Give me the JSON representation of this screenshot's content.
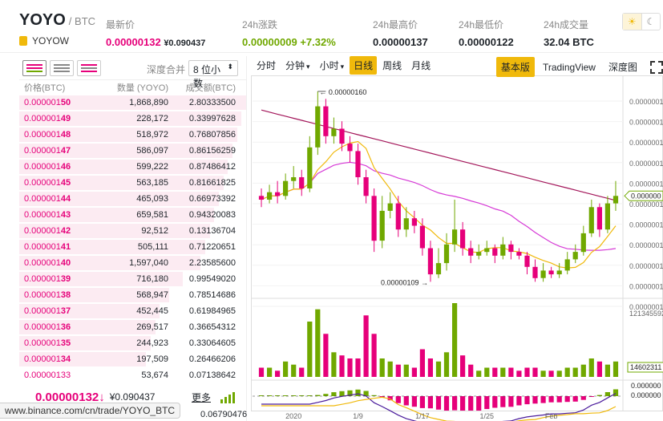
{
  "header": {
    "symbol": "YOYO",
    "quote": "/ BTC",
    "coin_name": "YOYOW",
    "stats": [
      {
        "label": "最新价",
        "value": "0.00000132",
        "extra": "¥0.090437",
        "color": "pink"
      },
      {
        "label": "24h涨跌",
        "value": "0.00000009",
        "extra": "+7.32%",
        "color": "green"
      },
      {
        "label": "24h最高价",
        "value": "0.00000137"
      },
      {
        "label": "24h最低价",
        "value": "0.00000122"
      },
      {
        "label": "24h成交量",
        "value": "32.04 BTC"
      }
    ],
    "theme_light_icon": "sun-icon",
    "theme_dark_icon": "moon-icon"
  },
  "orderbook": {
    "merge_label": "深度合并",
    "precision": "8 位小数",
    "columns": [
      "价格(BTC)",
      "数量 (YOYO)",
      "成交额(BTC)"
    ],
    "asks": [
      {
        "price_prefix": "0.000001",
        "price_suffix": "50",
        "amount": "1,868,890",
        "total": "2.80333500",
        "depth": 1.0
      },
      {
        "price_prefix": "0.000001",
        "price_suffix": "49",
        "amount": "228,172",
        "total": "0.33997628",
        "depth": 0.98
      },
      {
        "price_prefix": "0.000001",
        "price_suffix": "48",
        "amount": "518,972",
        "total": "0.76807856",
        "depth": 0.96
      },
      {
        "price_prefix": "0.000001",
        "price_suffix": "47",
        "amount": "586,097",
        "total": "0.86156259",
        "depth": 0.94
      },
      {
        "price_prefix": "0.000001",
        "price_suffix": "46",
        "amount": "599,222",
        "total": "0.87486412",
        "depth": 0.92
      },
      {
        "price_prefix": "0.000001",
        "price_suffix": "45",
        "amount": "563,185",
        "total": "0.81661825",
        "depth": 0.9
      },
      {
        "price_prefix": "0.000001",
        "price_suffix": "44",
        "amount": "465,093",
        "total": "0.66973392",
        "depth": 0.88
      },
      {
        "price_prefix": "0.000001",
        "price_suffix": "43",
        "amount": "659,581",
        "total": "0.94320083",
        "depth": 0.86
      },
      {
        "price_prefix": "0.000001",
        "price_suffix": "42",
        "amount": "92,512",
        "total": "0.13136704",
        "depth": 0.84
      },
      {
        "price_prefix": "0.000001",
        "price_suffix": "41",
        "amount": "505,111",
        "total": "0.71220651",
        "depth": 0.82
      },
      {
        "price_prefix": "0.000001",
        "price_suffix": "40",
        "amount": "1,597,040",
        "total": "2.23585600",
        "depth": 0.8
      },
      {
        "price_prefix": "0.000001",
        "price_suffix": "39",
        "amount": "716,180",
        "total": "0.99549020",
        "depth": 0.72
      },
      {
        "price_prefix": "0.000001",
        "price_suffix": "38",
        "amount": "568,947",
        "total": "0.78514686",
        "depth": 0.66
      },
      {
        "price_prefix": "0.000001",
        "price_suffix": "37",
        "amount": "452,445",
        "total": "0.61984965",
        "depth": 0.62
      },
      {
        "price_prefix": "0.000001",
        "price_suffix": "36",
        "amount": "269,517",
        "total": "0.36654312",
        "depth": 0.6
      },
      {
        "price_prefix": "0.000001",
        "price_suffix": "35",
        "amount": "244,923",
        "total": "0.33064605",
        "depth": 0.58
      },
      {
        "price_prefix": "0.000001",
        "price_suffix": "34",
        "amount": "197,509",
        "total": "0.26466206",
        "depth": 0.56
      },
      {
        "price_prefix": "0.00000133",
        "price_suffix": "",
        "amount": "53,674",
        "total": "0.07138642",
        "depth": 0.4
      }
    ],
    "last_price": "0.00000132",
    "last_arrow": "↓",
    "last_cny": "¥0.090437",
    "more_label": "更多",
    "bottom_value": "0.06790476"
  },
  "url_tooltip": "www.binance.com/cn/trade/YOYO_BTC",
  "chart_toolbar": {
    "left": [
      {
        "label": "分时",
        "active": false,
        "dropdown": false
      },
      {
        "label": "分钟",
        "active": false,
        "dropdown": true
      },
      {
        "label": "小时",
        "active": false,
        "dropdown": true
      },
      {
        "label": "日线",
        "active": true,
        "dropdown": false
      },
      {
        "label": "周线",
        "active": false,
        "dropdown": false
      },
      {
        "label": "月线",
        "active": false,
        "dropdown": false
      }
    ],
    "right": [
      {
        "label": "基本版",
        "active": true
      },
      {
        "label": "TradingView",
        "active": false
      },
      {
        "label": "深度图",
        "active": false
      }
    ]
  },
  "chart_data": {
    "type": "candlestick",
    "x_ticks": [
      "2020",
      "1/9",
      "1/17",
      "1/25",
      "Feb"
    ],
    "y_tick_labels": [
      "0.0000001",
      "0.0000001",
      "0.0000001",
      "0.0000001",
      "0.0000001",
      "0.0000001",
      "0.0000001",
      "0.0000001",
      "0.0000001",
      "0.0000001",
      "0.0000001"
    ],
    "high_annotation": "0.00000160",
    "low_annotation": "0.00000109",
    "current_price_label": "0.000000",
    "volume_axis_labels": [
      "121345592",
      "14602311"
    ],
    "macd_axis_labels": [
      "0.000000",
      "0.000000"
    ],
    "candles": [
      {
        "o": 132,
        "c": 131,
        "h": 134,
        "l": 129
      },
      {
        "o": 131,
        "c": 133,
        "h": 135,
        "l": 130
      },
      {
        "o": 133,
        "c": 132,
        "h": 136,
        "l": 130
      },
      {
        "o": 132,
        "c": 136,
        "h": 138,
        "l": 131
      },
      {
        "o": 136,
        "c": 137,
        "h": 140,
        "l": 134
      },
      {
        "o": 137,
        "c": 134,
        "h": 139,
        "l": 132
      },
      {
        "o": 134,
        "c": 145,
        "h": 148,
        "l": 133
      },
      {
        "o": 145,
        "c": 156,
        "h": 160,
        "l": 143
      },
      {
        "o": 156,
        "c": 148,
        "h": 158,
        "l": 146
      },
      {
        "o": 148,
        "c": 150,
        "h": 153,
        "l": 146
      },
      {
        "o": 150,
        "c": 146,
        "h": 152,
        "l": 144
      },
      {
        "o": 146,
        "c": 144,
        "h": 148,
        "l": 141
      },
      {
        "o": 144,
        "c": 137,
        "h": 146,
        "l": 135
      },
      {
        "o": 137,
        "c": 132,
        "h": 139,
        "l": 130
      },
      {
        "o": 132,
        "c": 120,
        "h": 134,
        "l": 117
      },
      {
        "o": 120,
        "c": 128,
        "h": 132,
        "l": 118
      },
      {
        "o": 128,
        "c": 130,
        "h": 133,
        "l": 126
      },
      {
        "o": 130,
        "c": 123,
        "h": 132,
        "l": 121
      },
      {
        "o": 123,
        "c": 126,
        "h": 129,
        "l": 121
      },
      {
        "o": 126,
        "c": 124,
        "h": 128,
        "l": 122
      },
      {
        "o": 124,
        "c": 118,
        "h": 126,
        "l": 116
      },
      {
        "o": 118,
        "c": 111,
        "h": 120,
        "l": 109
      },
      {
        "o": 111,
        "c": 114,
        "h": 118,
        "l": 110
      },
      {
        "o": 114,
        "c": 119,
        "h": 122,
        "l": 112
      },
      {
        "o": 119,
        "c": 123,
        "h": 131,
        "l": 117
      },
      {
        "o": 123,
        "c": 118,
        "h": 125,
        "l": 116
      },
      {
        "o": 118,
        "c": 116,
        "h": 120,
        "l": 114
      },
      {
        "o": 116,
        "c": 117,
        "h": 119,
        "l": 115
      },
      {
        "o": 117,
        "c": 118,
        "h": 120,
        "l": 116
      },
      {
        "o": 118,
        "c": 116,
        "h": 119,
        "l": 114
      },
      {
        "o": 116,
        "c": 119,
        "h": 121,
        "l": 115
      },
      {
        "o": 119,
        "c": 117,
        "h": 120,
        "l": 115
      },
      {
        "o": 117,
        "c": 116,
        "h": 118,
        "l": 115
      },
      {
        "o": 116,
        "c": 113,
        "h": 117,
        "l": 111
      },
      {
        "o": 113,
        "c": 110,
        "h": 115,
        "l": 109
      },
      {
        "o": 110,
        "c": 112,
        "h": 114,
        "l": 109
      },
      {
        "o": 112,
        "c": 111,
        "h": 113,
        "l": 110
      },
      {
        "o": 111,
        "c": 112,
        "h": 114,
        "l": 110
      },
      {
        "o": 112,
        "c": 115,
        "h": 117,
        "l": 111
      },
      {
        "o": 115,
        "c": 117,
        "h": 119,
        "l": 114
      },
      {
        "o": 117,
        "c": 122,
        "h": 124,
        "l": 116
      },
      {
        "o": 122,
        "c": 129,
        "h": 131,
        "l": 121
      },
      {
        "o": 129,
        "c": 123,
        "h": 130,
        "l": 121
      },
      {
        "o": 123,
        "c": 130,
        "h": 132,
        "l": 122
      },
      {
        "o": 130,
        "c": 132,
        "h": 136,
        "l": 128
      }
    ],
    "volumes": [
      3,
      3,
      2,
      5,
      4,
      3,
      18,
      22,
      14,
      8,
      7,
      6,
      6,
      20,
      14,
      6,
      5,
      4,
      4,
      3,
      9,
      6,
      5,
      8,
      24,
      7,
      4,
      2,
      3,
      3,
      3,
      3,
      2,
      3,
      3,
      2,
      2,
      2,
      3,
      3,
      4,
      6,
      5,
      4,
      5
    ]
  }
}
